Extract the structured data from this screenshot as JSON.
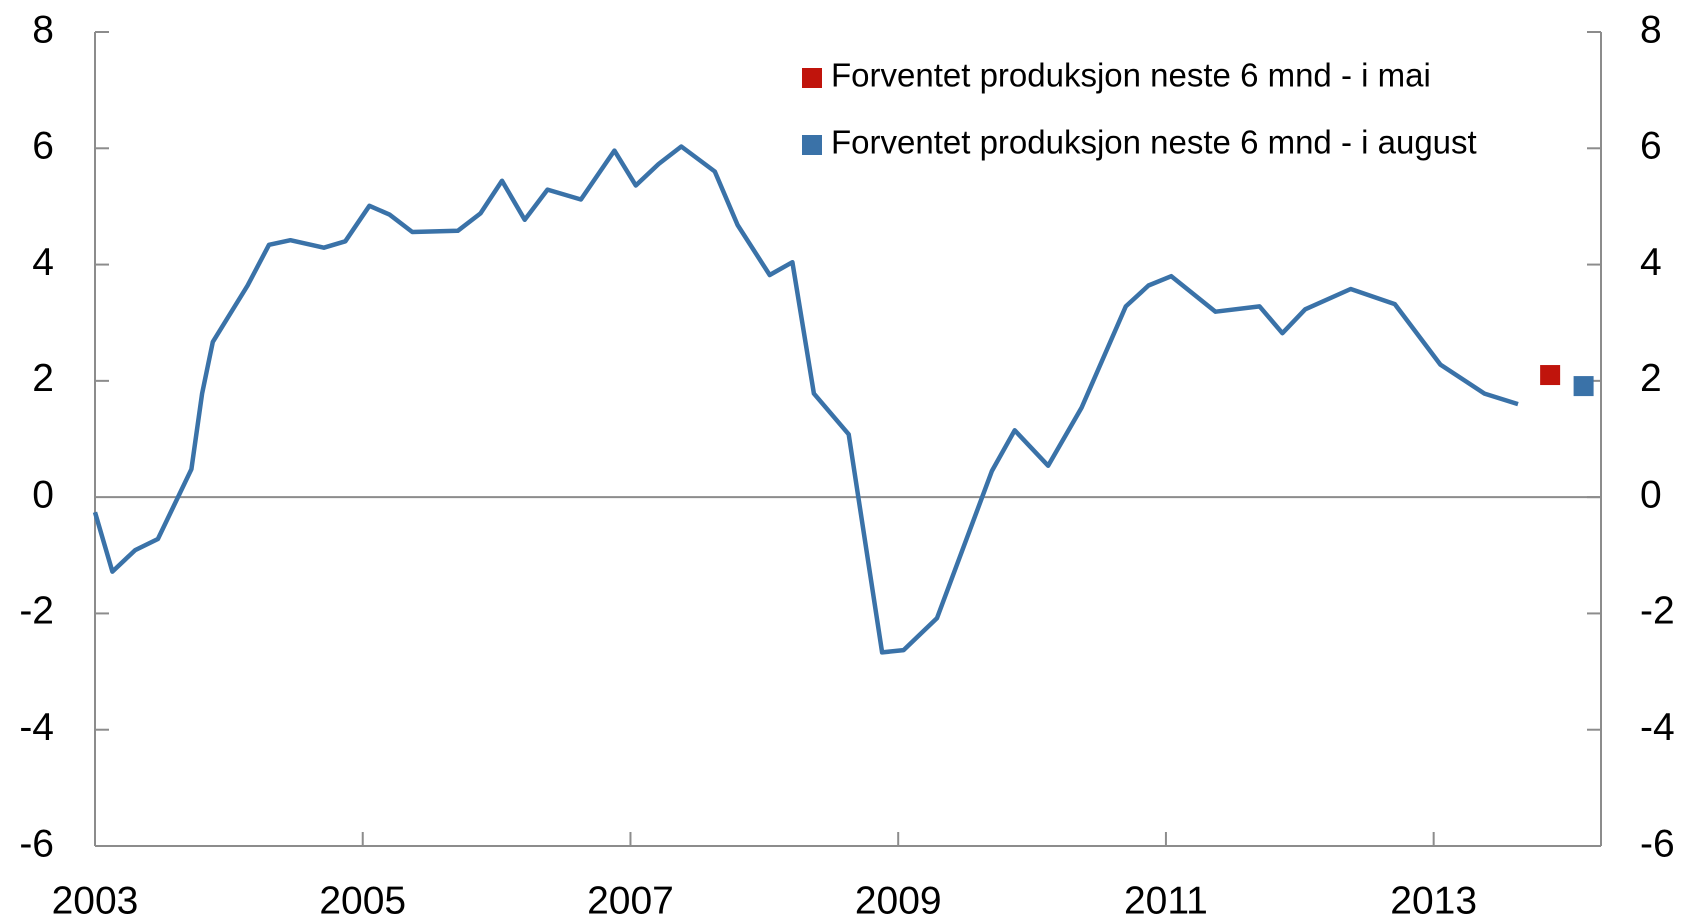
{
  "chart_data": {
    "type": "line",
    "xlim": [
      2003,
      2014.25
    ],
    "xticks": [
      2003,
      2005,
      2007,
      2009,
      2011,
      2013
    ],
    "ylim": [
      -6,
      8
    ],
    "yticks": [
      -6,
      -4,
      -2,
      0,
      2,
      4,
      6,
      8
    ],
    "y2lim": [
      -6,
      8
    ],
    "y2ticks": [
      -6,
      -4,
      -2,
      0,
      2,
      4,
      6,
      8
    ],
    "legend": "upper right",
    "series": [
      {
        "color": "#3a72a8",
        "mode": "line",
        "x": [
          2003.0,
          2003.13,
          2003.3,
          2003.47,
          2003.72,
          2003.8,
          2003.88,
          2004.14,
          2004.3,
          2004.46,
          2004.71,
          2004.87,
          2005.05,
          2005.2,
          2005.37,
          2005.71,
          2005.88,
          2006.04,
          2006.21,
          2006.38,
          2006.63,
          2006.88,
          2007.04,
          2007.21,
          2007.38,
          2007.63,
          2007.8,
          2008.04,
          2008.21,
          2008.37,
          2008.63,
          2008.88,
          2009.04,
          2009.29,
          2009.7,
          2009.87,
          2010.12,
          2010.37,
          2010.7,
          2010.87,
          2011.04,
          2011.37,
          2011.7,
          2011.87,
          2012.04,
          2012.38,
          2012.71,
          2013.05,
          2013.38,
          2013.63
        ],
        "values": [
          -0.26,
          -1.28,
          -0.91,
          -0.72,
          0.48,
          1.78,
          2.67,
          3.64,
          4.34,
          4.42,
          4.29,
          4.4,
          5.01,
          4.86,
          4.56,
          4.58,
          4.88,
          5.44,
          4.77,
          5.29,
          5.12,
          5.96,
          5.36,
          5.73,
          6.03,
          5.6,
          4.68,
          3.82,
          4.04,
          1.78,
          1.08,
          -2.67,
          -2.63,
          -2.08,
          0.45,
          1.15,
          0.54,
          1.54,
          3.28,
          3.64,
          3.8,
          3.19,
          3.28,
          2.82,
          3.23,
          3.58,
          3.32,
          2.28,
          1.78,
          1.6
        ]
      },
      {
        "name": "Forventet produksjon neste 6 mnd - i mai",
        "color": "#c0140c",
        "mode": "marker",
        "x": [
          2013.87
        ],
        "values": [
          2.1
        ]
      },
      {
        "name": "Forventet produksjon neste 6 mnd - i august",
        "color": "#3a72a8",
        "mode": "marker",
        "x": [
          2014.12
        ],
        "values": [
          1.91
        ]
      }
    ]
  }
}
